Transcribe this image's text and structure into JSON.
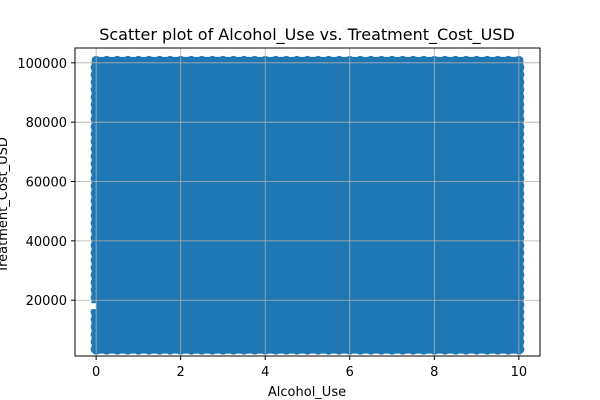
{
  "chart_data": {
    "type": "scatter",
    "title": "Scatter plot of Alcohol_Use vs. Treatment_Cost_USD",
    "xlabel": "Alcohol_Use",
    "ylabel": "Treatment_Cost_USD",
    "xlim": [
      -0.5,
      10.5
    ],
    "ylim": [
      1200,
      105000
    ],
    "xticks": [
      0,
      2,
      4,
      6,
      8,
      10
    ],
    "yticks": [
      20000,
      40000,
      60000,
      80000,
      100000
    ],
    "grid": true,
    "legend": "none",
    "series": [
      {
        "color": "#1f77b4",
        "description_note": "",
        "x_range": [
          0,
          10
        ],
        "y_range": [
          3500,
          100500
        ],
        "regions": [
          {
            "x": [
              0,
              10
            ],
            "y": [
              3500,
              100500
            ]
          }
        ],
        "gap_at_x0": {
          "y": [
            17000,
            19000
          ]
        }
      }
    ]
  },
  "colors": {
    "point": "#1f77b4",
    "grid": "#b0b0b0",
    "axis": "#000000"
  }
}
